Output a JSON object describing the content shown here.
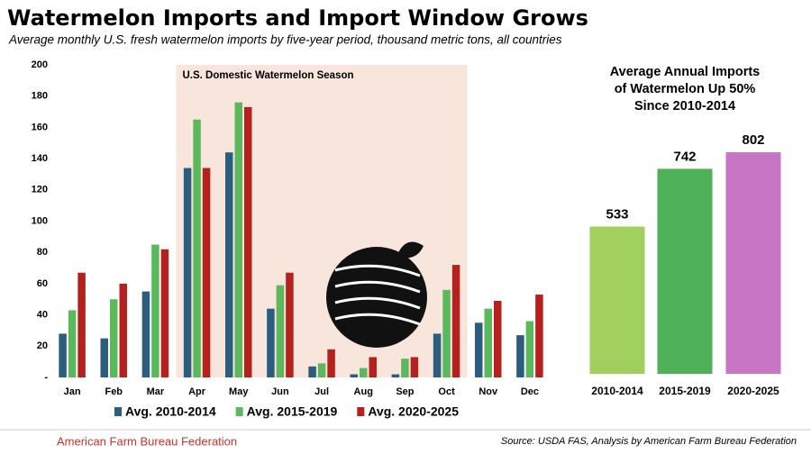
{
  "title": "Watermelon Imports and Import Window Grows",
  "subtitle": "Average monthly U.S. fresh watermelon imports by five-year period, thousand metric tons, all countries",
  "organization": "American Farm Bureau Federation",
  "source": "Source: USDA FAS, Analysis by American Farm Bureau Federation",
  "chart_data": [
    {
      "type": "bar",
      "categories": [
        "Jan",
        "Feb",
        "Mar",
        "Apr",
        "May",
        "Jun",
        "Jul",
        "Aug",
        "Sep",
        "Oct",
        "Nov",
        "Dec"
      ],
      "series": [
        {
          "name": "Avg. 2010-2014",
          "color": "#2d5d7e",
          "values": [
            28,
            25,
            55,
            134,
            144,
            44,
            7,
            2,
            2,
            28,
            35,
            27
          ]
        },
        {
          "name": "Avg. 2015-2019",
          "color": "#5cb85c",
          "values": [
            43,
            50,
            85,
            165,
            176,
            59,
            9,
            6,
            12,
            56,
            44,
            36
          ]
        },
        {
          "name": "Avg. 2020-2025",
          "color": "#b5221e",
          "values": [
            67,
            60,
            82,
            134,
            173,
            67,
            18,
            13,
            13,
            72,
            49,
            53
          ]
        }
      ],
      "ylim": [
        0,
        200
      ],
      "yticks": [
        {
          "value": 0,
          "label": "-"
        },
        20,
        40,
        60,
        80,
        100,
        120,
        140,
        160,
        180,
        200
      ],
      "annotation": {
        "text": "U.S. Domestic Watermelon Season",
        "from": "Apr",
        "to": "Oct",
        "color": "#f8e6dc"
      },
      "legend": "bottom"
    },
    {
      "type": "bar",
      "title": [
        "Average Annual Imports",
        "of Watermelon Up 50%",
        "Since 2010-2014"
      ],
      "categories": [
        "2010-2014",
        "2015-2019",
        "2020-2025"
      ],
      "values": [
        533,
        742,
        802
      ],
      "colors": [
        "#a2d05f",
        "#4fb05a",
        "#c875c6"
      ]
    }
  ]
}
